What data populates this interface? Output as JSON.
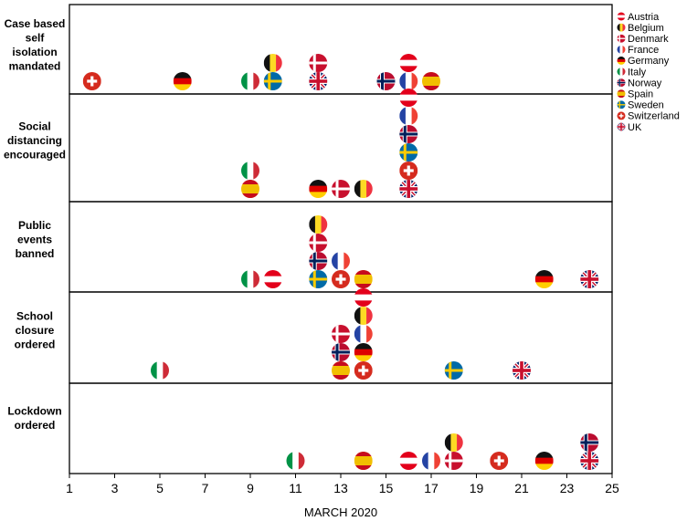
{
  "chart_data": {
    "type": "scatter",
    "xlabel": "MARCH 2020",
    "xlim": [
      1,
      25
    ],
    "xticks": [
      "1",
      "3",
      "5",
      "7",
      "9",
      "11",
      "13",
      "15",
      "17",
      "19",
      "21",
      "23",
      "25"
    ],
    "legend_position": "right",
    "countries": [
      {
        "name": "Austria",
        "flag": "austria"
      },
      {
        "name": "Belgium",
        "flag": "belgium"
      },
      {
        "name": "Denmark",
        "flag": "denmark"
      },
      {
        "name": "France",
        "flag": "france"
      },
      {
        "name": "Germany",
        "flag": "germany"
      },
      {
        "name": "Italy",
        "flag": "italy"
      },
      {
        "name": "Norway",
        "flag": "norway"
      },
      {
        "name": "Spain",
        "flag": "spain"
      },
      {
        "name": "Sweden",
        "flag": "sweden"
      },
      {
        "name": "Switzerland",
        "flag": "switzerland"
      },
      {
        "name": " UK",
        "flag": "uk"
      }
    ],
    "panels": [
      {
        "label": [
          "Case based",
          "self",
          "isolation",
          "mandated"
        ],
        "events": [
          {
            "flag": "switzerland",
            "day": 2
          },
          {
            "flag": "germany",
            "day": 6
          },
          {
            "flag": "italy",
            "day": 9
          },
          {
            "flag": "sweden",
            "day": 10
          },
          {
            "flag": "belgium",
            "day": 10
          },
          {
            "flag": "uk",
            "day": 12
          },
          {
            "flag": "denmark",
            "day": 12
          },
          {
            "flag": "norway",
            "day": 15
          },
          {
            "flag": "france",
            "day": 16
          },
          {
            "flag": "austria",
            "day": 16
          },
          {
            "flag": "spain",
            "day": 17
          }
        ]
      },
      {
        "label": [
          "Social",
          "distancing",
          "encouraged"
        ],
        "events": [
          {
            "flag": "spain",
            "day": 9
          },
          {
            "flag": "italy",
            "day": 9
          },
          {
            "flag": "germany",
            "day": 12
          },
          {
            "flag": "denmark",
            "day": 13
          },
          {
            "flag": "belgium",
            "day": 14
          },
          {
            "flag": "uk",
            "day": 16
          },
          {
            "flag": "switzerland",
            "day": 16
          },
          {
            "flag": "sweden",
            "day": 16
          },
          {
            "flag": "norway",
            "day": 16
          },
          {
            "flag": "france",
            "day": 16
          },
          {
            "flag": "austria",
            "day": 16
          }
        ]
      },
      {
        "label": [
          "Public",
          "events",
          "banned"
        ],
        "events": [
          {
            "flag": "italy",
            "day": 9
          },
          {
            "flag": "austria",
            "day": 10
          },
          {
            "flag": "sweden",
            "day": 12
          },
          {
            "flag": "norway",
            "day": 12
          },
          {
            "flag": "denmark",
            "day": 12
          },
          {
            "flag": "belgium",
            "day": 12
          },
          {
            "flag": "switzerland",
            "day": 13
          },
          {
            "flag": "france",
            "day": 13
          },
          {
            "flag": "spain",
            "day": 14
          },
          {
            "flag": "germany",
            "day": 22
          },
          {
            "flag": "uk",
            "day": 24
          }
        ]
      },
      {
        "label": [
          "School",
          "closure",
          "ordered"
        ],
        "events": [
          {
            "flag": "italy",
            "day": 5
          },
          {
            "flag": "spain",
            "day": 13
          },
          {
            "flag": "norway",
            "day": 13
          },
          {
            "flag": "denmark",
            "day": 13
          },
          {
            "flag": "switzerland",
            "day": 14
          },
          {
            "flag": "germany",
            "day": 14
          },
          {
            "flag": "france",
            "day": 14
          },
          {
            "flag": "belgium",
            "day": 14
          },
          {
            "flag": "austria",
            "day": 14
          },
          {
            "flag": "sweden",
            "day": 18
          },
          {
            "flag": "uk",
            "day": 21
          }
        ]
      },
      {
        "label": [
          "Lockdown",
          "ordered"
        ],
        "events": [
          {
            "flag": "italy",
            "day": 11
          },
          {
            "flag": "spain",
            "day": 14
          },
          {
            "flag": "austria",
            "day": 16
          },
          {
            "flag": "france",
            "day": 17
          },
          {
            "flag": "denmark",
            "day": 18
          },
          {
            "flag": "belgium",
            "day": 18
          },
          {
            "flag": "switzerland",
            "day": 20
          },
          {
            "flag": "germany",
            "day": 22
          },
          {
            "flag": "uk",
            "day": 24
          },
          {
            "flag": "norway",
            "day": 24
          }
        ]
      }
    ]
  }
}
